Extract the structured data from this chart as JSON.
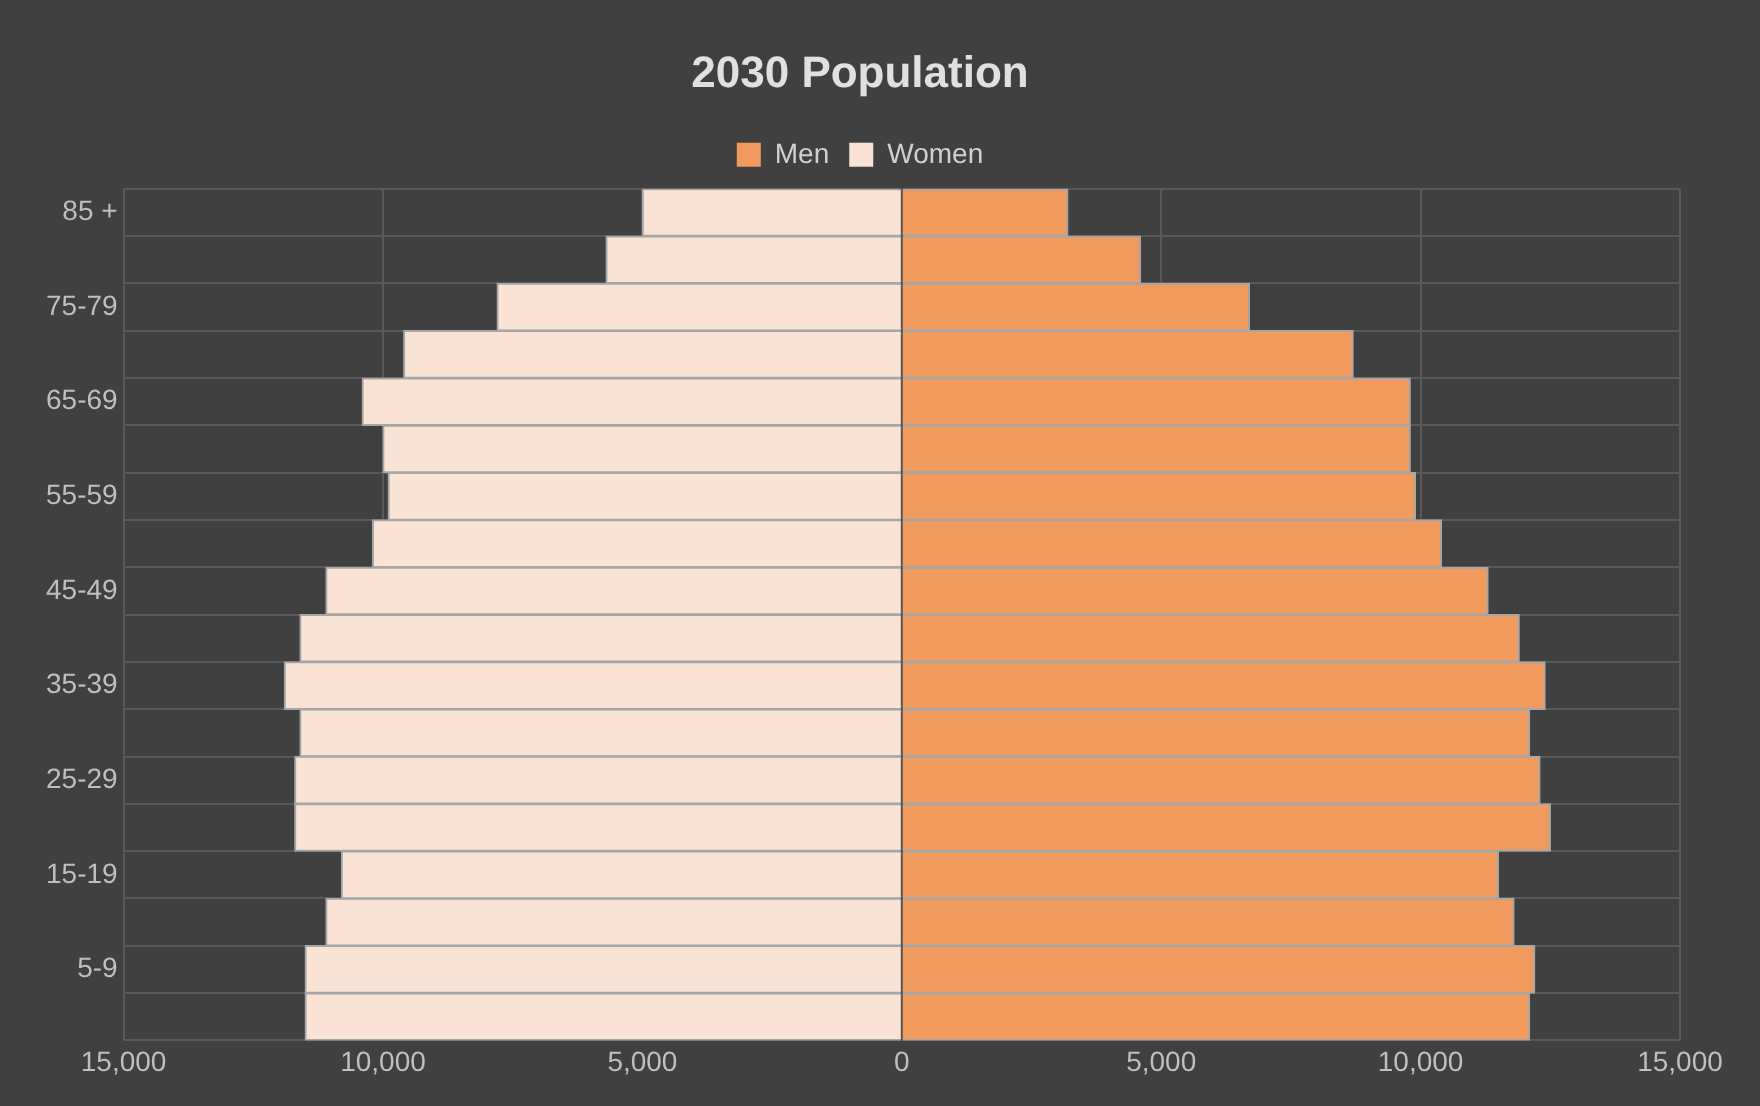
{
  "chart_data": {
    "type": "bar",
    "orientation": "horizontal",
    "stacked": true,
    "title": "2030 Population",
    "legend": "top",
    "grid": true,
    "categories": [
      "85 +",
      null,
      "75-79",
      null,
      "65-69",
      null,
      "55-59",
      null,
      "45-49",
      null,
      "35-39",
      null,
      "25-29",
      null,
      "15-19",
      null,
      "5-9",
      null
    ],
    "series": [
      {
        "name": "Men",
        "color": "#f09a5e",
        "values": [
          3200,
          4600,
          6700,
          8700,
          9800,
          9800,
          9900,
          10400,
          11300,
          11900,
          12400,
          12100,
          12300,
          12500,
          11500,
          11800,
          12200,
          12100
        ]
      },
      {
        "name": "Women",
        "color": "#fae3d5",
        "values": [
          -5000,
          -5700,
          -7800,
          -9600,
          -10400,
          -10000,
          -9900,
          -10200,
          -11100,
          -11600,
          -11900,
          -11600,
          -11700,
          -11700,
          -10800,
          -11100,
          -11500,
          -11500
        ]
      }
    ],
    "xlim": [
      -15000,
      15000
    ],
    "xticks": [
      {
        "value": -15000,
        "label": "15,000"
      },
      {
        "value": -10000,
        "label": "10,000"
      },
      {
        "value": -5000,
        "label": "5,000"
      },
      {
        "value": 0,
        "label": "0"
      },
      {
        "value": 5000,
        "label": "5,000"
      },
      {
        "value": 10000,
        "label": "10,000"
      },
      {
        "value": 15000,
        "label": "15,000"
      }
    ]
  }
}
